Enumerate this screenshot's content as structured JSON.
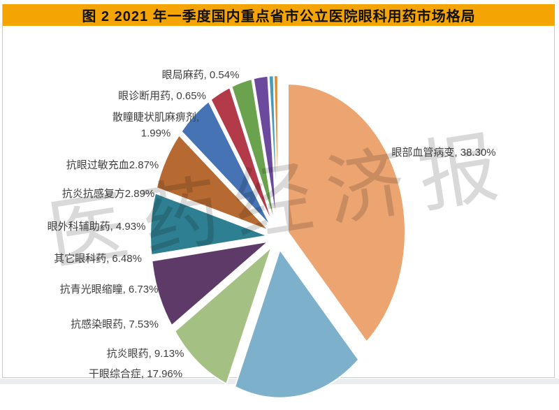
{
  "title": "图 2   2021 年一季度国内重点省市公立医院眼科用药市场格局",
  "title_bar_color": "#F5A503",
  "watermark": "医药经济报",
  "chart_data": {
    "type": "pie",
    "title": "2021 年一季度国内重点省市公立医院眼科用药市场格局",
    "exploded": true,
    "start_angle_deg": 0,
    "direction": "clockwise",
    "legend": "none",
    "units": "percent",
    "categories": [
      "眼部血管病变",
      "干眼综合症",
      "抗炎眼药",
      "抗感染眼药",
      "抗青光眼缩瞳",
      "其它眼科药",
      "眼外科辅助药",
      "抗炎抗感复方",
      "抗眼过敏充血",
      "散瞳睫状肌麻痹剂",
      "眼诊断用药",
      "眼局麻药"
    ],
    "values": [
      38.3,
      17.96,
      9.13,
      7.53,
      6.73,
      6.48,
      4.93,
      2.89,
      2.87,
      1.99,
      0.65,
      0.54
    ],
    "labels": [
      "眼部血管病变, 38.30%",
      "干眼综合症, 17.96%",
      "抗炎眼药, 9.13%",
      "抗感染眼药, 7.53%",
      "抗青光眼缩瞳, 6.73%",
      "其它眼科药, 6.48%",
      "眼外科辅助药, 4.93%",
      "抗炎抗感复方2.89%",
      "抗眼过敏充血2.87%",
      "散瞳睫状肌麻痹剂,\n1.99%",
      "眼诊断用药, 0.65%",
      "眼局麻药, 0.54%"
    ],
    "colors": [
      "#ECA471",
      "#7DB0CA",
      "#A4C083",
      "#5E3A69",
      "#2F7F92",
      "#B66A31",
      "#4573B3",
      "#B33B49",
      "#6BA24E",
      "#6B4A9E",
      "#4A9AB8",
      "#E0882F"
    ]
  }
}
